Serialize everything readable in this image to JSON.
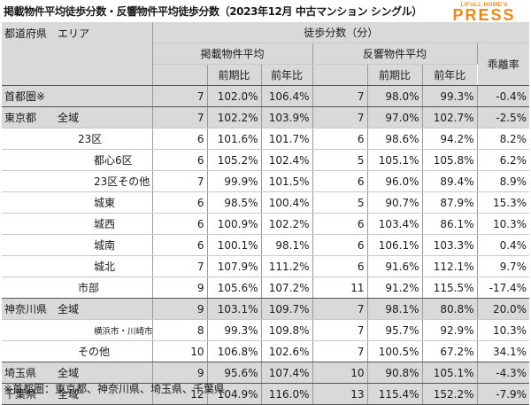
{
  "title": "掲載物件平均徒歩分数・反響物件平均徒歩分数（2023年12月 中古マンション シングル）",
  "logo": {
    "top": "LIFULL HOME'S",
    "bottom": "PRESS"
  },
  "headers": {
    "area": "都道府県　エリア",
    "walk": "徒歩分数（分）",
    "listed": "掲載物件平均",
    "response": "反響物件平均",
    "gap": "乖離率",
    "mom": "前期比",
    "yoy": "前年比",
    "mom2": "前期比",
    "yoy2": "前年比"
  },
  "rows": [
    {
      "name": "首都圏※",
      "l": "7",
      "lm": "102.0%",
      "ly": "106.4%",
      "r": "7",
      "rm": "98.0%",
      "ry": "99.3%",
      "g": "-0.4%"
    },
    {
      "name": "東京都　　全域",
      "l": "7",
      "lm": "102.2%",
      "ly": "103.9%",
      "r": "7",
      "rm": "97.0%",
      "ry": "102.7%",
      "g": "-2.5%"
    },
    {
      "name": "23区",
      "l": "6",
      "lm": "101.6%",
      "ly": "101.7%",
      "r": "6",
      "rm": "98.6%",
      "ry": "94.2%",
      "g": "8.2%"
    },
    {
      "name": "都心6区",
      "l": "6",
      "lm": "105.2%",
      "ly": "102.4%",
      "r": "5",
      "rm": "105.1%",
      "ry": "105.8%",
      "g": "6.2%"
    },
    {
      "name": "23区その他",
      "l": "7",
      "lm": "99.9%",
      "ly": "101.5%",
      "r": "6",
      "rm": "96.0%",
      "ry": "89.4%",
      "g": "8.9%"
    },
    {
      "name": "城東",
      "l": "6",
      "lm": "98.5%",
      "ly": "100.4%",
      "r": "5",
      "rm": "90.7%",
      "ry": "87.9%",
      "g": "15.3%"
    },
    {
      "name": "城西",
      "l": "6",
      "lm": "100.9%",
      "ly": "102.2%",
      "r": "6",
      "rm": "103.4%",
      "ry": "86.1%",
      "g": "10.3%"
    },
    {
      "name": "城南",
      "l": "6",
      "lm": "100.1%",
      "ly": "98.1%",
      "r": "6",
      "rm": "106.1%",
      "ry": "103.3%",
      "g": "0.4%"
    },
    {
      "name": "城北",
      "l": "7",
      "lm": "107.9%",
      "ly": "111.2%",
      "r": "6",
      "rm": "91.6%",
      "ry": "112.1%",
      "g": "9.7%"
    },
    {
      "name": "市部",
      "l": "9",
      "lm": "105.6%",
      "ly": "107.2%",
      "r": "11",
      "rm": "91.2%",
      "ry": "115.5%",
      "g": "-17.4%"
    },
    {
      "name": "神奈川県　全域",
      "l": "9",
      "lm": "103.1%",
      "ly": "109.7%",
      "r": "7",
      "rm": "98.1%",
      "ry": "80.8%",
      "g": "20.0%"
    },
    {
      "name": "横浜市・川崎市",
      "l": "8",
      "lm": "99.3%",
      "ly": "109.8%",
      "r": "7",
      "rm": "95.7%",
      "ry": "92.9%",
      "g": "10.3%"
    },
    {
      "name": "その他",
      "l": "10",
      "lm": "106.8%",
      "ly": "102.6%",
      "r": "7",
      "rm": "100.5%",
      "ry": "67.2%",
      "g": "34.1%"
    },
    {
      "name": "埼玉県　　全域",
      "l": "9",
      "lm": "95.6%",
      "ly": "107.4%",
      "r": "10",
      "rm": "90.8%",
      "ry": "105.1%",
      "g": "-4.3%"
    },
    {
      "name": "千葉県　　全域",
      "l": "12",
      "lm": "104.9%",
      "ly": "116.0%",
      "r": "13",
      "rm": "115.4%",
      "ry": "152.2%",
      "g": "-7.9%"
    }
  ],
  "footnote": "※首都圏：東京都、神奈川県、埼玉県、千葉県"
}
